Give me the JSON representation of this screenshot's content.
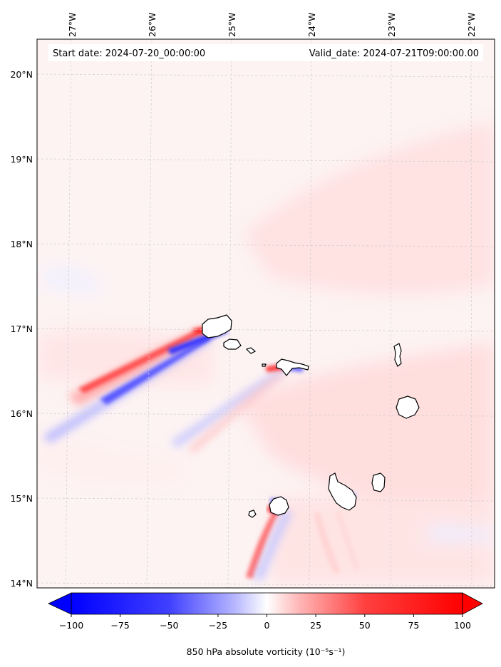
{
  "header": {
    "start_label": "Start date: 2024-07-20_00:00:00",
    "valid_label": "Valid_date: 2024-07-21T09:00:00.00"
  },
  "longitude_ticks": [
    "27°W",
    "26°W",
    "25°W",
    "24°W",
    "23°W",
    "22°W"
  ],
  "latitude_ticks": [
    "20°N",
    "19°N",
    "18°N",
    "17°N",
    "16°N",
    "15°N",
    "14°N"
  ],
  "colorbar": {
    "ticks": [
      "−100",
      "−75",
      "−50",
      "−25",
      "0",
      "25",
      "50",
      "75",
      "100"
    ],
    "title": "850 hPa absolute vorticity",
    "units": "(10⁻⁵s⁻¹)",
    "range": [
      -100,
      100
    ],
    "colors": {
      "negative": "#0000ff",
      "zero": "#ffffff",
      "positive": "#ff0000"
    },
    "extend": "both"
  },
  "map": {
    "region": "Cape Verde Islands",
    "background_color": "#fdf3f3",
    "gridlines": true,
    "coastline_color": "#000000"
  }
}
